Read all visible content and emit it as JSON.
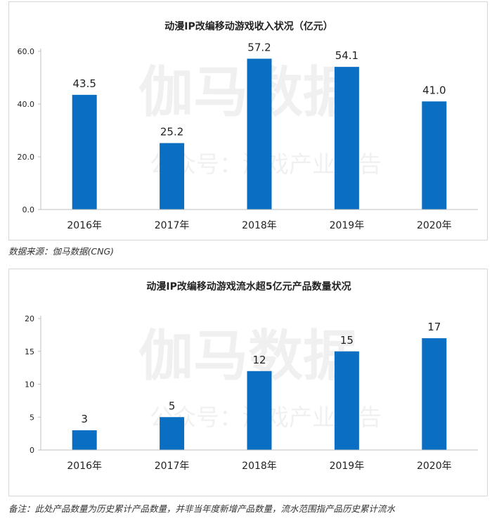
{
  "watermark": {
    "main": "伽马数据",
    "sub": "公众号：游戏产业报告"
  },
  "colors": {
    "bar": "#0a6fc2",
    "axis": "#bfbfbf",
    "text": "#222222"
  },
  "source_note": "数据来源：伽马数据(CNG)",
  "footnote": "备注：此处产品数量为历史累计产品数量，并非当年度新增产品数量，流水范围指产品历史累计流水",
  "chart_data": [
    {
      "type": "bar",
      "title": "动漫IP改编移动游戏收入状况（亿元）",
      "categories": [
        "2016年",
        "2017年",
        "2018年",
        "2019年",
        "2020年"
      ],
      "values": [
        43.5,
        25.2,
        57.2,
        54.1,
        41.0
      ],
      "value_labels": [
        "43.5",
        "25.2",
        "57.2",
        "54.1",
        "41.0"
      ],
      "yticks": [
        "0.0",
        "20.0",
        "40.0",
        "60.0"
      ],
      "ylim": [
        0,
        60
      ],
      "xlabel": "",
      "ylabel": "",
      "grid": false,
      "legend": "none"
    },
    {
      "type": "bar",
      "title": "动漫IP改编移动游戏流水超5亿元产品数量状况",
      "categories": [
        "2016年",
        "2017年",
        "2018年",
        "2019年",
        "2020年"
      ],
      "values": [
        3,
        5,
        12,
        15,
        17
      ],
      "value_labels": [
        "3",
        "5",
        "12",
        "15",
        "17"
      ],
      "yticks": [
        "0",
        "5",
        "10",
        "15",
        "20"
      ],
      "ylim": [
        0,
        20
      ],
      "xlabel": "",
      "ylabel": "",
      "grid": false,
      "legend": "none"
    }
  ]
}
